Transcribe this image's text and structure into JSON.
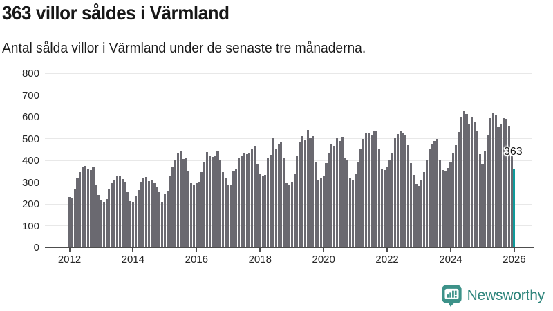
{
  "header": {
    "title": "363 villor såldes i Värmland",
    "subtitle": "Antal sålda villor i Värmland under de senaste tre månaderna."
  },
  "chart_data": {
    "type": "bar",
    "title": "363 villor såldes i Värmland",
    "subtitle": "Antal sålda villor i Värmland under de senaste tre månaderna.",
    "frequency": "monthly",
    "x_start": "2012-01",
    "x_end": "2026-01",
    "ylim": [
      0,
      800
    ],
    "grid": true,
    "y_ticks": [
      0,
      100,
      200,
      300,
      400,
      500,
      600,
      700,
      800
    ],
    "x_tick_years": [
      2012,
      2014,
      2016,
      2018,
      2020,
      2022,
      2024,
      2026
    ],
    "bar_color": "#6a6970",
    "highlight_color": "#0f9b9b",
    "values": [
      232,
      226,
      266,
      321,
      347,
      368,
      375,
      362,
      355,
      372,
      290,
      242,
      215,
      207,
      222,
      266,
      296,
      311,
      331,
      326,
      315,
      302,
      255,
      212,
      205,
      238,
      264,
      299,
      321,
      324,
      305,
      308,
      295,
      279,
      253,
      207,
      243,
      256,
      326,
      368,
      399,
      435,
      442,
      406,
      411,
      352,
      295,
      288,
      295,
      297,
      347,
      390,
      438,
      422,
      417,
      422,
      446,
      399,
      347,
      321,
      290,
      285,
      352,
      359,
      414,
      420,
      432,
      430,
      435,
      451,
      466,
      380,
      337,
      331,
      334,
      409,
      425,
      503,
      451,
      474,
      484,
      411,
      295,
      290,
      297,
      337,
      420,
      484,
      511,
      492,
      539,
      505,
      511,
      394,
      307,
      318,
      331,
      388,
      435,
      473,
      466,
      505,
      490,
      508,
      409,
      404,
      321,
      310,
      337,
      390,
      451,
      497,
      525,
      525,
      518,
      536,
      532,
      451,
      359,
      355,
      373,
      404,
      435,
      503,
      521,
      532,
      525,
      515,
      469,
      388,
      334,
      293,
      282,
      307,
      345,
      404,
      451,
      473,
      490,
      497,
      399,
      357,
      352,
      366,
      394,
      432,
      469,
      531,
      596,
      629,
      612,
      566,
      596,
      575,
      534,
      430,
      383,
      445,
      518,
      594,
      620,
      606,
      552,
      565,
      594,
      589,
      555,
      420,
      363
    ],
    "highlight": {
      "index": 168,
      "value": 363,
      "label": "363"
    }
  },
  "footer": {
    "brand": "Newsworthy"
  }
}
